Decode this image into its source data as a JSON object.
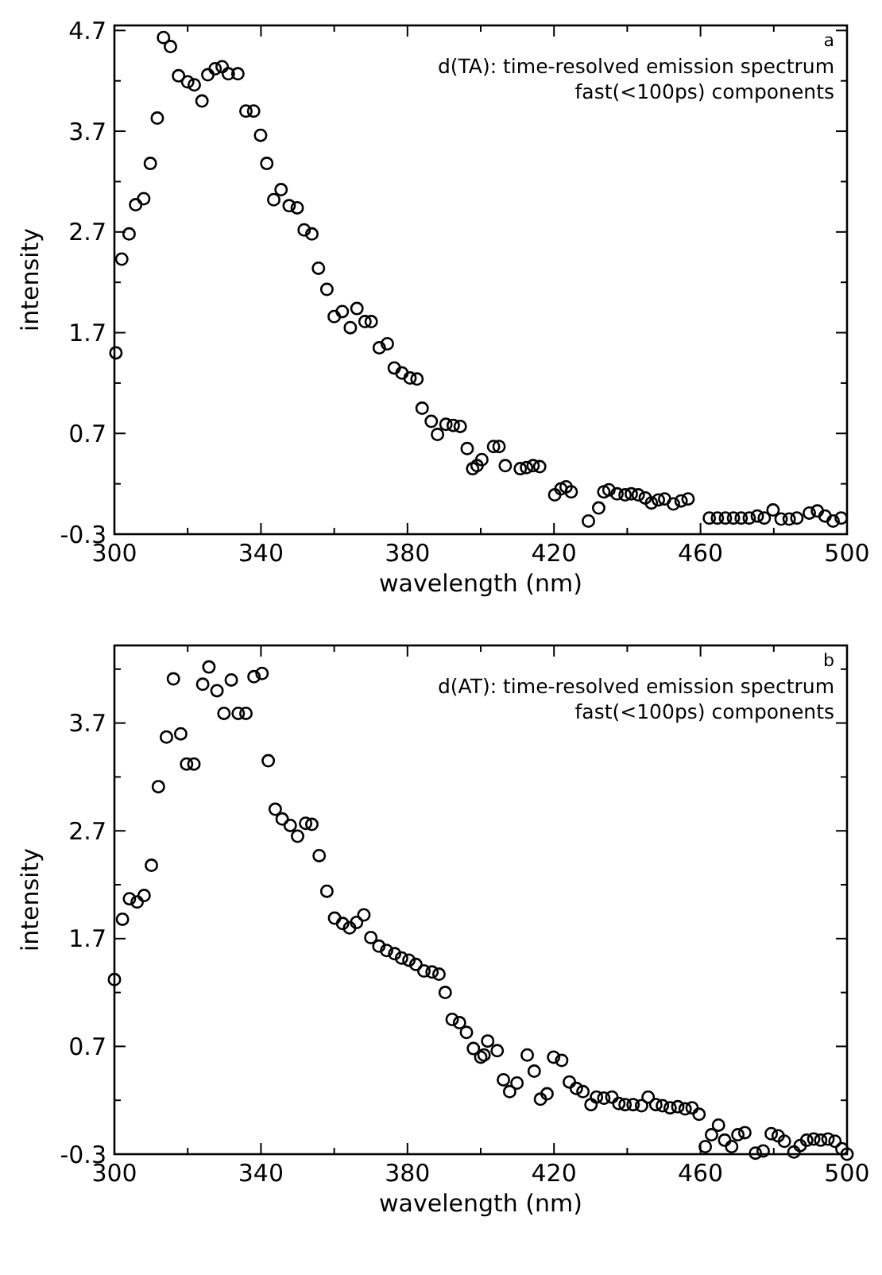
{
  "chart_data": [
    {
      "type": "scatter",
      "title": "d(TA): time-resolved emission spectrum",
      "subtitle": "fast(<100ps) components",
      "annotations": [
        "a"
      ],
      "xlabel": "wavelength (nm)",
      "ylabel": "intensity",
      "marker": "circle",
      "grid": false,
      "xlim": [
        300,
        500
      ],
      "ylim": [
        -0.3,
        4.75
      ],
      "xticks": [
        300,
        {
          "value": 320,
          "label": null
        },
        340,
        {
          "value": 360,
          "label": null
        },
        380,
        {
          "value": 400,
          "label": null
        },
        420,
        {
          "value": 440,
          "label": null
        },
        460,
        {
          "value": 480,
          "label": null
        },
        500
      ],
      "yticks": [
        -0.3,
        {
          "value": 0.2,
          "label": null
        },
        0.7,
        {
          "value": 1.2,
          "label": null
        },
        1.7,
        {
          "value": 2.2,
          "label": null
        },
        2.7,
        {
          "value": 3.2,
          "label": null
        },
        3.7,
        {
          "value": 4.2,
          "label": null
        },
        4.7
      ],
      "series": [
        {
          "color": "#000000",
          "x": [
            300.4,
            302,
            304,
            305.8,
            308,
            309.8,
            311.7,
            313.4,
            315.3,
            317.5,
            320,
            321.8,
            323.9,
            325.5,
            327.5,
            329.4,
            331.1,
            333.7,
            335.9,
            338,
            339.9,
            341.6,
            343.5,
            345.5,
            347.7,
            349.9,
            351.8,
            353.9,
            355.7,
            358,
            360,
            362.2,
            364.4,
            366.2,
            368.4,
            370.1,
            372.3,
            374.5,
            376.4,
            378.5,
            380.7,
            382.6,
            384,
            386.5,
            388.2,
            390.5,
            392.5,
            394.4,
            396.3,
            397.8,
            399,
            400.3,
            403.5,
            405,
            406.7,
            410.8,
            412.5,
            414.3,
            416.1,
            420.2,
            421.9,
            423.3,
            424.7,
            429.4,
            432.2,
            433.6,
            435,
            437.2,
            439.4,
            441.1,
            443,
            444.9,
            446.6,
            448.5,
            450.2,
            452.6,
            454.7,
            456.6,
            462.4,
            464.6,
            466.8,
            469,
            471.1,
            473.3,
            475.5,
            477.4,
            479.8,
            482,
            484.2,
            486.3,
            489.7,
            491.9,
            494,
            496.2,
            498.4
          ],
          "values": [
            1.5,
            2.43,
            2.68,
            2.97,
            3.03,
            3.38,
            3.83,
            4.63,
            4.54,
            4.25,
            4.19,
            4.16,
            4.0,
            4.26,
            4.32,
            4.34,
            4.27,
            4.27,
            3.9,
            3.9,
            3.66,
            3.38,
            3.02,
            3.12,
            2.96,
            2.94,
            2.72,
            2.68,
            2.34,
            2.13,
            1.86,
            1.91,
            1.75,
            1.94,
            1.81,
            1.81,
            1.55,
            1.59,
            1.35,
            1.3,
            1.25,
            1.24,
            0.95,
            0.82,
            0.69,
            0.79,
            0.78,
            0.77,
            0.55,
            0.35,
            0.38,
            0.44,
            0.57,
            0.57,
            0.38,
            0.35,
            0.36,
            0.38,
            0.37,
            0.09,
            0.15,
            0.17,
            0.12,
            -0.17,
            -0.04,
            0.12,
            0.14,
            0.1,
            0.09,
            0.1,
            0.09,
            0.06,
            0.01,
            0.04,
            0.05,
            0,
            0.03,
            0.05,
            -0.14,
            -0.14,
            -0.14,
            -0.14,
            -0.14,
            -0.14,
            -0.12,
            -0.14,
            -0.06,
            -0.15,
            -0.15,
            -0.14,
            -0.09,
            -0.07,
            -0.12,
            -0.17,
            -0.14
          ]
        }
      ]
    },
    {
      "type": "scatter",
      "title": "d(AT): time-resolved emission spectrum",
      "subtitle": "fast(<100ps) components",
      "annotations": [
        "b"
      ],
      "xlabel": "wavelength (nm)",
      "ylabel": "intensity",
      "marker": "circle",
      "grid": false,
      "xlim": [
        300,
        500
      ],
      "ylim": [
        -0.3,
        4.42
      ],
      "xticks": [
        300,
        {
          "value": 320,
          "label": null
        },
        340,
        {
          "value": 360,
          "label": null
        },
        380,
        {
          "value": 400,
          "label": null
        },
        420,
        {
          "value": 440,
          "label": null
        },
        460,
        {
          "value": 480,
          "label": null
        },
        500
      ],
      "yticks": [
        -0.3,
        {
          "value": 0.2,
          "label": null
        },
        0.7,
        {
          "value": 1.2,
          "label": null
        },
        1.7,
        {
          "value": 2.2,
          "label": null
        },
        2.7,
        {
          "value": 3.2,
          "label": null
        },
        3.7,
        {
          "value": 4.2,
          "label": null
        }
      ],
      "series": [
        {
          "color": "#000000",
          "x": [
            300,
            302.2,
            304.1,
            306.2,
            308.1,
            310.1,
            312,
            314.2,
            316.1,
            318.1,
            319.7,
            321.7,
            324.1,
            325.8,
            328,
            329.9,
            331.9,
            333.8,
            335.9,
            338.1,
            340.3,
            342,
            343.9,
            345.8,
            348,
            350,
            352.2,
            353.9,
            355.9,
            358,
            360.1,
            362.3,
            364.2,
            366.1,
            368.1,
            370,
            372.2,
            374.3,
            376.5,
            378.4,
            380.4,
            382.3,
            384.5,
            386.7,
            388.6,
            390.3,
            392.2,
            394.2,
            396.1,
            398,
            400,
            400.9,
            401.9,
            404.5,
            406.2,
            407.9,
            409.9,
            412.7,
            414.6,
            416.3,
            418.1,
            419.9,
            422.1,
            424.2,
            426.1,
            427.9,
            430.1,
            431.6,
            433.6,
            435.8,
            437.7,
            439.4,
            441.6,
            443.9,
            445.7,
            447.8,
            449.6,
            451.7,
            453.8,
            455.8,
            457.7,
            459.6,
            461.3,
            463,
            464.9,
            466.6,
            468.5,
            470.2,
            472.1,
            475,
            477.1,
            479.3,
            481.2,
            482.9,
            485.5,
            487.2,
            489,
            490.9,
            492.8,
            494.8,
            496.7,
            498.6,
            500
          ],
          "values": [
            1.32,
            1.88,
            2.07,
            2.04,
            2.1,
            2.38,
            3.11,
            3.57,
            4.11,
            3.6,
            3.32,
            3.32,
            4.06,
            4.22,
            4.0,
            3.79,
            4.1,
            3.79,
            3.79,
            4.13,
            4.16,
            3.35,
            2.9,
            2.81,
            2.75,
            2.65,
            2.77,
            2.76,
            2.47,
            2.14,
            1.89,
            1.84,
            1.8,
            1.85,
            1.92,
            1.71,
            1.63,
            1.59,
            1.56,
            1.52,
            1.5,
            1.46,
            1.4,
            1.39,
            1.37,
            1.2,
            0.95,
            0.92,
            0.83,
            0.68,
            0.6,
            0.62,
            0.75,
            0.66,
            0.39,
            0.28,
            0.36,
            0.62,
            0.47,
            0.21,
            0.26,
            0.6,
            0.57,
            0.37,
            0.31,
            0.28,
            0.16,
            0.23,
            0.22,
            0.23,
            0.17,
            0.16,
            0.16,
            0.15,
            0.23,
            0.16,
            0.15,
            0.13,
            0.14,
            0.12,
            0.13,
            0.07,
            -0.23,
            -0.12,
            -0.03,
            -0.17,
            -0.23,
            -0.12,
            -0.1,
            -0.29,
            -0.27,
            -0.11,
            -0.13,
            -0.18,
            -0.28,
            -0.22,
            -0.17,
            -0.16,
            -0.17,
            -0.16,
            -0.18,
            -0.25,
            -0.3
          ]
        }
      ]
    }
  ]
}
